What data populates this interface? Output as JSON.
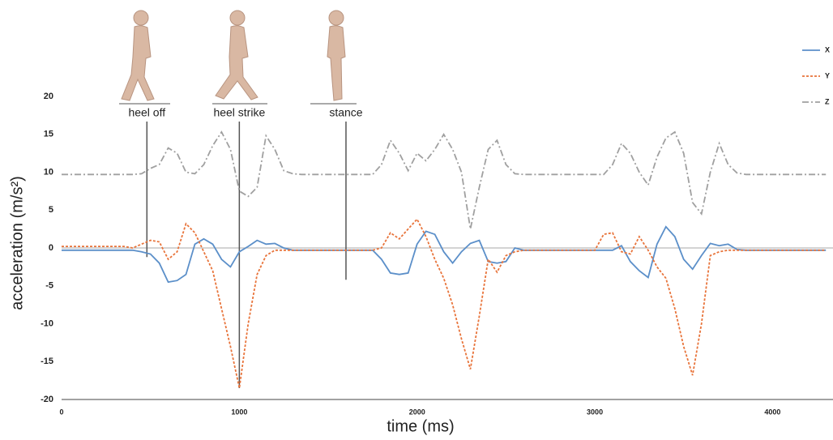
{
  "chart_data": {
    "type": "line",
    "xlabel": "time (ms)",
    "ylabel": "acceleration (m/s²)",
    "x": [
      0,
      50,
      100,
      150,
      200,
      250,
      300,
      350,
      400,
      450,
      500,
      550,
      600,
      650,
      700,
      750,
      800,
      850,
      900,
      950,
      1000,
      1050,
      1100,
      1150,
      1200,
      1250,
      1300,
      1350,
      1400,
      1450,
      1500,
      1550,
      1600,
      1650,
      1700,
      1750,
      1800,
      1850,
      1900,
      1950,
      2000,
      2050,
      2100,
      2150,
      2200,
      2250,
      2300,
      2350,
      2400,
      2450,
      2500,
      2550,
      2600,
      2650,
      2700,
      2750,
      2800,
      2850,
      2900,
      2950,
      3000,
      3050,
      3100,
      3150,
      3200,
      3250,
      3300,
      3350,
      3400,
      3450,
      3500,
      3550,
      3600,
      3650,
      3700,
      3750,
      3800,
      3850,
      3900,
      3950,
      4000,
      4050,
      4100,
      4150,
      4200,
      4250,
      4300
    ],
    "series": [
      {
        "name": "X",
        "color": "#5b8fc9",
        "dash": "none",
        "values": [
          -0.3,
          -0.3,
          -0.3,
          -0.3,
          -0.3,
          -0.3,
          -0.3,
          -0.3,
          -0.3,
          -0.5,
          -0.8,
          -2,
          -4.5,
          -4.3,
          -3.5,
          0.5,
          1.2,
          0.5,
          -1.5,
          -2.5,
          -0.5,
          0.2,
          1,
          0.5,
          0.6,
          0,
          -0.3,
          -0.3,
          -0.3,
          -0.3,
          -0.3,
          -0.3,
          -0.3,
          -0.3,
          -0.3,
          -0.3,
          -1.5,
          -3.3,
          -3.5,
          -3.3,
          0.5,
          2.2,
          1.8,
          -0.5,
          -2,
          -0.5,
          0.6,
          1,
          -1.8,
          -2,
          -1.8,
          0,
          -0.3,
          -0.3,
          -0.3,
          -0.3,
          -0.3,
          -0.3,
          -0.3,
          -0.3,
          -0.3,
          -0.3,
          -0.3,
          0.3,
          -1.8,
          -3,
          -3.9,
          0.5,
          2.8,
          1.5,
          -1.5,
          -2.8,
          -1,
          0.6,
          0.3,
          0.5,
          -0.2,
          -0.3,
          -0.3,
          -0.3,
          -0.3,
          -0.3,
          -0.3,
          -0.3,
          -0.3,
          -0.3,
          -0.3
        ]
      },
      {
        "name": "Y",
        "color": "#e8743b",
        "dash": "3 2",
        "values": [
          0.2,
          0.2,
          0.2,
          0.2,
          0.2,
          0.2,
          0.2,
          0.2,
          0,
          0.5,
          1,
          0.8,
          -1.5,
          -0.5,
          3.2,
          2,
          -0.5,
          -3,
          -8,
          -13,
          -18.5,
          -10,
          -3.5,
          -1,
          -0.3,
          -0.3,
          -0.3,
          -0.3,
          -0.3,
          -0.3,
          -0.3,
          -0.3,
          -0.3,
          -0.3,
          -0.3,
          -0.3,
          0,
          2,
          1.2,
          2.5,
          3.8,
          1.5,
          -1.5,
          -4,
          -7.5,
          -12,
          -16,
          -9,
          -1.5,
          -3.2,
          -1,
          -0.5,
          -0.3,
          -0.3,
          -0.3,
          -0.3,
          -0.3,
          -0.3,
          -0.3,
          -0.3,
          -0.3,
          1.8,
          2,
          -0.5,
          -0.8,
          1.5,
          -0.3,
          -2.5,
          -4,
          -8,
          -13,
          -16.8,
          -10,
          -1,
          -0.5,
          -0.3,
          -0.3,
          -0.3,
          -0.3,
          -0.3,
          -0.3,
          -0.3,
          -0.3,
          -0.3,
          -0.3,
          -0.3,
          -0.3
        ]
      },
      {
        "name": "Z",
        "color": "#a0a0a0",
        "dash": "8 3 2 3",
        "values": [
          9.7,
          9.7,
          9.7,
          9.7,
          9.7,
          9.7,
          9.7,
          9.7,
          9.7,
          9.8,
          10.5,
          11,
          13.2,
          12.5,
          10,
          9.8,
          11,
          13.5,
          15.3,
          13,
          7.5,
          6.8,
          8,
          14.8,
          13,
          10.2,
          9.8,
          9.7,
          9.7,
          9.7,
          9.7,
          9.7,
          9.7,
          9.7,
          9.7,
          9.7,
          11,
          14.2,
          12.5,
          10.2,
          12.5,
          11.5,
          13,
          15,
          13,
          10,
          2.5,
          8,
          13,
          14.2,
          11,
          9.8,
          9.7,
          9.7,
          9.7,
          9.7,
          9.7,
          9.7,
          9.7,
          9.7,
          9.7,
          9.7,
          11,
          13.8,
          12.5,
          10,
          8.3,
          12,
          14.5,
          15.3,
          12.5,
          6,
          4.5,
          10,
          13.8,
          11,
          9.9,
          9.7,
          9.7,
          9.7,
          9.7,
          9.7,
          9.7,
          9.7,
          9.7,
          9.7,
          9.7
        ]
      }
    ],
    "annotations": [
      {
        "label": "heel off",
        "x": 480,
        "y_end": -1.2
      },
      {
        "label": "heel strike",
        "x": 1000,
        "y_end": -18.5
      },
      {
        "label": "stance",
        "x": 1600,
        "y_end": -4.2
      }
    ],
    "xlim": [
      0,
      4340
    ],
    "ylim": [
      -20,
      20
    ],
    "xticks": [
      0,
      1000,
      2000,
      3000,
      4000
    ],
    "yticks": [
      20,
      15,
      10,
      5,
      0,
      -5,
      -10,
      -15,
      -20
    ],
    "zero_line": true,
    "legend": "top-right"
  }
}
